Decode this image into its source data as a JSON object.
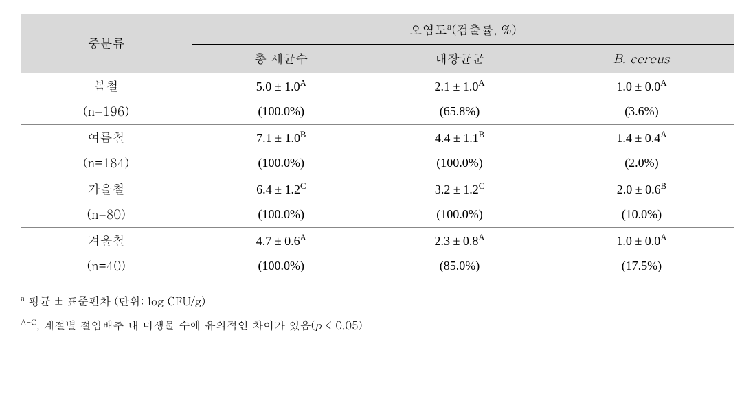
{
  "table": {
    "header": {
      "category": "중분류",
      "group_label_prefix": "오염도",
      "group_label_sup": "a",
      "group_label_suffix": "(검출률, %)",
      "columns": {
        "c1": "총 세균수",
        "c2": "대장균군",
        "c3": "B. cereus"
      }
    },
    "rows": [
      {
        "label": "봄철",
        "n": "(n=196)",
        "c1_val": "5.0 ± 1.0",
        "c1_sup": "A",
        "c2_val": "2.1 ± 1.0",
        "c2_sup": "A",
        "c3_val": "1.0 ± 0.0",
        "c3_sup": "A",
        "c1_pct": "(100.0%)",
        "c2_pct": "(65.8%)",
        "c3_pct": "(3.6%)"
      },
      {
        "label": "여름철",
        "n": "(n=184)",
        "c1_val": "7.1 ± 1.0",
        "c1_sup": "B",
        "c2_val": "4.4 ± 1.1",
        "c2_sup": "B",
        "c3_val": "1.4 ± 0.4",
        "c3_sup": "A",
        "c1_pct": "(100.0%)",
        "c2_pct": "(100.0%)",
        "c3_pct": "(2.0%)"
      },
      {
        "label": "가을철",
        "n": "(n=80)",
        "c1_val": "6.4 ± 1.2",
        "c1_sup": "C",
        "c2_val": "3.2 ± 1.2",
        "c2_sup": "C",
        "c3_val": "2.0 ± 0.6",
        "c3_sup": "B",
        "c1_pct": "(100.0%)",
        "c2_pct": "(100.0%)",
        "c3_pct": "(10.0%)"
      },
      {
        "label": "겨울철",
        "n": "(n=40)",
        "c1_val": "4.7 ± 0.6",
        "c1_sup": "A",
        "c2_val": "2.3 ± 0.8",
        "c2_sup": "A",
        "c3_val": "1.0 ± 0.0",
        "c3_sup": "A",
        "c1_pct": "(100.0%)",
        "c2_pct": "(85.0%)",
        "c3_pct": "(17.5%)"
      }
    ]
  },
  "footnotes": {
    "f1_sup": "a",
    "f1_text": " 평균 ± 표준편차 (단위: log CFU/g)",
    "f2_sup": "A-C",
    "f2_text_prefix": ", 계절별 절임배추 내 미생물 수에 유의적인 차이가 있음(",
    "f2_p": "p",
    "f2_text_suffix": " < 0.05)"
  },
  "columns_width": {
    "c0": "24%",
    "c1": "25%",
    "c2": "25%",
    "c3": "26%"
  }
}
